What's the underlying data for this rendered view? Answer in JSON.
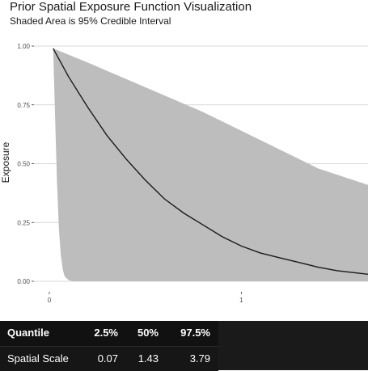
{
  "chart_data": {
    "type": "area",
    "title": "Prior Spatial Exposure Function Visualization",
    "subtitle": "Shaded Area is 95% Credible Interval",
    "xlabel": "",
    "ylabel": "Exposure",
    "xlim": [
      -0.08,
      1.66
    ],
    "ylim": [
      0,
      1
    ],
    "x_ticks": [
      0,
      1
    ],
    "y_ticks": [
      0.0,
      0.25,
      0.5,
      0.75,
      1.0
    ],
    "x_tick_labels": [
      "0",
      "1"
    ],
    "y_tick_labels": [
      "0.00",
      "0.25",
      "0.50",
      "0.75",
      "1.00"
    ],
    "grid": "horizontal",
    "colors": {
      "band": "#bdbdbd",
      "line": "#1a1a1a",
      "grid": "#cccccc"
    },
    "series": [
      {
        "kind": "median-line",
        "x": [
          0.02,
          0.1,
          0.2,
          0.3,
          0.4,
          0.5,
          0.6,
          0.7,
          0.8,
          0.9,
          1.0,
          1.1,
          1.2,
          1.3,
          1.4,
          1.5,
          1.66
        ],
        "values": [
          0.99,
          0.87,
          0.74,
          0.62,
          0.52,
          0.43,
          0.35,
          0.29,
          0.24,
          0.19,
          0.15,
          0.12,
          0.1,
          0.08,
          0.06,
          0.045,
          0.03
        ]
      },
      {
        "kind": "interval-upper",
        "x": [
          0.02,
          0.2,
          0.4,
          0.6,
          0.8,
          1.0,
          1.2,
          1.4,
          1.66
        ],
        "values": [
          0.99,
          0.93,
          0.86,
          0.79,
          0.72,
          0.64,
          0.56,
          0.48,
          0.41
        ]
      },
      {
        "kind": "interval-lower",
        "x": [
          0.02,
          0.03,
          0.04,
          0.05,
          0.06,
          0.07,
          0.08,
          0.1,
          0.12,
          1.66
        ],
        "values": [
          0.99,
          0.7,
          0.42,
          0.22,
          0.11,
          0.05,
          0.02,
          0.005,
          0.0,
          0.0
        ]
      }
    ]
  },
  "table": {
    "headers": [
      "Quantile",
      "2.5%",
      "50%",
      "97.5%"
    ],
    "row": [
      "Spatial Scale",
      "0.07",
      "1.43",
      "3.79"
    ]
  }
}
